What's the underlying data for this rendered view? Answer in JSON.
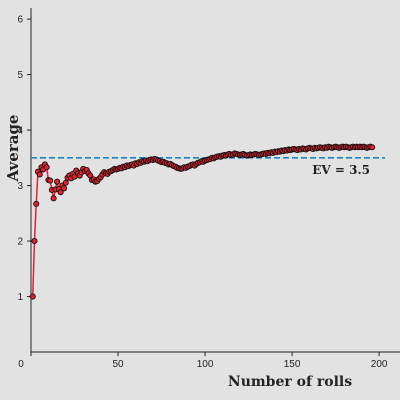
{
  "chart_data": {
    "type": "line",
    "title": "",
    "xlabel": "Number of rolls",
    "ylabel": "Average",
    "xlim": [
      0,
      212
    ],
    "ylim": [
      0,
      6.2
    ],
    "x_ticks": [
      0,
      50,
      100,
      150,
      200
    ],
    "y_ticks": [
      1,
      2,
      3,
      4,
      5,
      6
    ],
    "grid": false,
    "legend": "none",
    "series": [
      {
        "x": [
          1,
          2,
          3,
          4,
          5,
          6,
          7,
          8,
          9,
          10,
          11,
          12,
          13,
          14,
          15,
          16,
          17,
          18,
          19,
          20,
          21,
          22,
          23,
          24,
          25,
          26,
          27,
          28,
          29,
          30,
          31,
          32,
          33,
          34,
          35,
          36,
          37,
          38,
          39,
          40,
          41,
          42,
          43,
          44,
          45,
          46,
          47,
          48,
          49,
          50,
          51,
          52,
          53,
          54,
          55,
          56,
          57,
          58,
          59,
          60,
          61,
          62,
          63,
          64,
          65,
          66,
          67,
          68,
          69,
          70,
          71,
          72,
          73,
          74,
          75,
          76,
          77,
          78,
          79,
          80,
          81,
          82,
          83,
          84,
          85,
          86,
          87,
          88,
          89,
          90,
          91,
          92,
          93,
          94,
          95,
          96,
          97,
          98,
          99,
          100,
          101,
          102,
          103,
          104,
          105,
          106,
          107,
          108,
          109,
          110,
          111,
          112,
          113,
          114,
          115,
          116,
          117,
          118,
          119,
          120,
          121,
          122,
          123,
          124,
          125,
          126,
          127,
          128,
          129,
          130,
          131,
          132,
          133,
          134,
          135,
          136,
          137,
          138,
          139,
          140,
          141,
          142,
          143,
          144,
          145,
          146,
          147,
          148,
          149,
          150,
          151,
          152,
          153,
          154,
          155,
          156,
          157,
          158,
          159,
          160,
          161,
          162,
          163,
          164,
          165,
          166,
          167,
          168,
          169,
          170,
          171,
          172,
          173,
          174,
          175,
          176,
          177,
          178,
          179,
          180,
          181,
          182,
          183,
          184,
          185,
          186,
          187,
          188,
          189,
          190,
          191,
          192,
          193,
          194,
          195,
          196
        ],
        "y": [
          1.0,
          2.0,
          2.67,
          3.25,
          3.2,
          3.33,
          3.29,
          3.38,
          3.33,
          3.1,
          3.09,
          2.92,
          2.77,
          2.93,
          3.07,
          2.94,
          2.88,
          3.0,
          2.95,
          3.05,
          3.14,
          3.18,
          3.13,
          3.21,
          3.16,
          3.27,
          3.22,
          3.18,
          3.24,
          3.3,
          3.26,
          3.28,
          3.22,
          3.18,
          3.1,
          3.11,
          3.07,
          3.08,
          3.12,
          3.15,
          3.2,
          3.24,
          3.22,
          3.21,
          3.25,
          3.26,
          3.28,
          3.3,
          3.29,
          3.3,
          3.32,
          3.31,
          3.34,
          3.33,
          3.36,
          3.35,
          3.37,
          3.38,
          3.36,
          3.4,
          3.39,
          3.42,
          3.41,
          3.44,
          3.43,
          3.45,
          3.44,
          3.46,
          3.47,
          3.46,
          3.48,
          3.47,
          3.45,
          3.44,
          3.42,
          3.43,
          3.41,
          3.4,
          3.38,
          3.39,
          3.37,
          3.35,
          3.34,
          3.32,
          3.31,
          3.3,
          3.31,
          3.33,
          3.32,
          3.34,
          3.35,
          3.37,
          3.38,
          3.36,
          3.39,
          3.41,
          3.42,
          3.44,
          3.43,
          3.45,
          3.46,
          3.47,
          3.48,
          3.5,
          3.49,
          3.51,
          3.52,
          3.53,
          3.52,
          3.54,
          3.55,
          3.54,
          3.56,
          3.57,
          3.55,
          3.56,
          3.58,
          3.57,
          3.56,
          3.55,
          3.56,
          3.57,
          3.55,
          3.54,
          3.55,
          3.56,
          3.55,
          3.56,
          3.57,
          3.56,
          3.55,
          3.56,
          3.57,
          3.58,
          3.57,
          3.59,
          3.58,
          3.6,
          3.59,
          3.61,
          3.6,
          3.62,
          3.61,
          3.63,
          3.62,
          3.64,
          3.63,
          3.65,
          3.64,
          3.65,
          3.66,
          3.65,
          3.64,
          3.66,
          3.65,
          3.67,
          3.66,
          3.65,
          3.67,
          3.68,
          3.67,
          3.66,
          3.68,
          3.67,
          3.68,
          3.69,
          3.68,
          3.67,
          3.69,
          3.68,
          3.7,
          3.69,
          3.68,
          3.69,
          3.7,
          3.69,
          3.68,
          3.69,
          3.7,
          3.69,
          3.7,
          3.69,
          3.68,
          3.69,
          3.7,
          3.69,
          3.7,
          3.69,
          3.7,
          3.69,
          3.7,
          3.69,
          3.68,
          3.69,
          3.7,
          3.69
        ],
        "line_color": "#e8202d",
        "marker_fill": "#e8202d",
        "marker_edge": "#111111"
      }
    ],
    "reference_line": {
      "y": 3.5,
      "label": "EV = 3.5",
      "color": "#1a86c8",
      "style": "dashed"
    }
  }
}
